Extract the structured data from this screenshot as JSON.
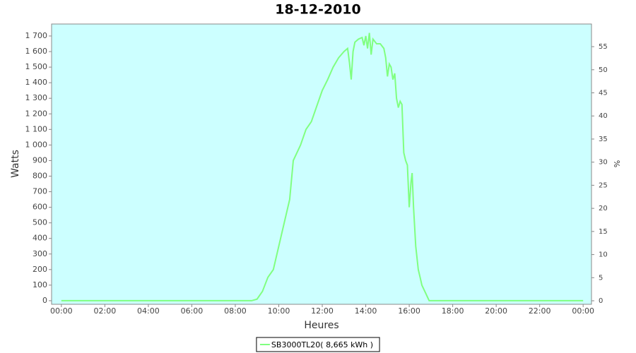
{
  "chart_data": {
    "type": "line",
    "title": "18-12-2010",
    "xlabel": "Heures",
    "ylabel": "Watts",
    "y2label": "%",
    "xlim": [
      -27,
      1463
    ],
    "xticks": [
      {
        "value": 0,
        "label": "00:00"
      },
      {
        "value": 120,
        "label": "02:00"
      },
      {
        "value": 240,
        "label": "04:00"
      },
      {
        "value": 360,
        "label": "06:00"
      },
      {
        "value": 480,
        "label": "08:00"
      },
      {
        "value": 600,
        "label": "10:00"
      },
      {
        "value": 720,
        "label": "12:00"
      },
      {
        "value": 840,
        "label": "14:00"
      },
      {
        "value": 960,
        "label": "16:00"
      },
      {
        "value": 1080,
        "label": "18:00"
      },
      {
        "value": 1200,
        "label": "20:00"
      },
      {
        "value": 1320,
        "label": "22:00"
      },
      {
        "value": 1440,
        "label": "00:00"
      }
    ],
    "ylim": [
      -23,
      1777
    ],
    "yticks": [
      0,
      100,
      200,
      300,
      400,
      500,
      600,
      700,
      800,
      900,
      {
        "value": 1000,
        "label": "1 000"
      },
      {
        "value": 1100,
        "label": "1 100"
      },
      {
        "value": 1200,
        "label": "1 200"
      },
      {
        "value": 1300,
        "label": "1 300"
      },
      {
        "value": 1400,
        "label": "1 400"
      },
      {
        "value": 1500,
        "label": "1 500"
      },
      {
        "value": 1600,
        "label": "1 600"
      },
      {
        "value": 1700,
        "label": "1 700"
      }
    ],
    "y2lim": [
      -0.76,
      59.9
    ],
    "y2ticks": [
      0,
      5,
      10,
      15,
      20,
      25,
      30,
      35,
      40,
      45,
      50,
      55
    ],
    "grid": false,
    "background": "#ccffff",
    "x": [
      0,
      525,
      540,
      555,
      570,
      585,
      600,
      615,
      630,
      640,
      660,
      675,
      690,
      705,
      720,
      735,
      750,
      765,
      780,
      790,
      795,
      800,
      805,
      810,
      820,
      830,
      835,
      840,
      845,
      850,
      855,
      860,
      870,
      880,
      890,
      895,
      900,
      905,
      910,
      915,
      920,
      925,
      930,
      935,
      940,
      945,
      950,
      955,
      960,
      965,
      968,
      972,
      978,
      985,
      990,
      995,
      1005,
      1015,
      1440
    ],
    "series": [
      {
        "name": "SB3000TL20( 8,665 kWh )",
        "color": "#80ff80",
        "values": [
          0,
          0,
          10,
          60,
          150,
          200,
          350,
          500,
          650,
          900,
          1000,
          1100,
          1150,
          1250,
          1350,
          1420,
          1500,
          1560,
          1600,
          1620,
          1530,
          1420,
          1600,
          1660,
          1680,
          1690,
          1640,
          1700,
          1620,
          1720,
          1580,
          1680,
          1650,
          1650,
          1620,
          1560,
          1440,
          1520,
          1500,
          1420,
          1460,
          1300,
          1240,
          1280,
          1260,
          950,
          900,
          870,
          600,
          760,
          820,
          600,
          350,
          200,
          150,
          100,
          50,
          0,
          0
        ]
      }
    ],
    "legend": "bottom"
  }
}
